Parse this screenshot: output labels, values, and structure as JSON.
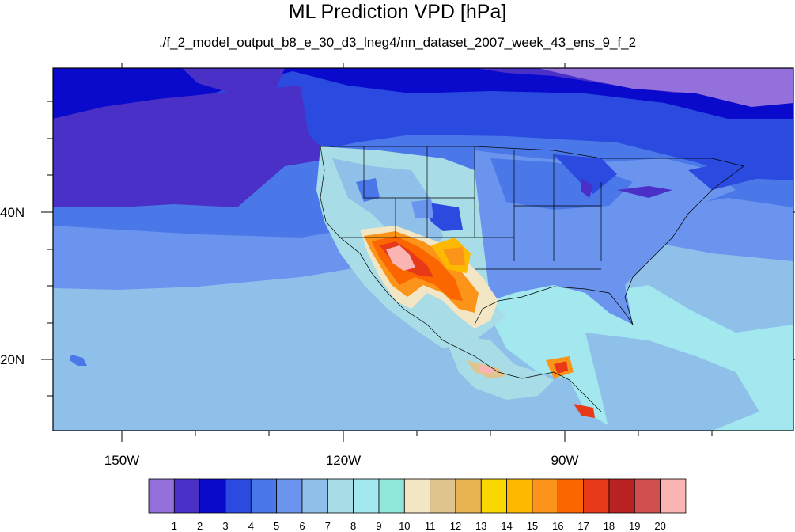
{
  "title": "ML Prediction VPD [hPa]",
  "subtitle": "./f_2_model_output_b8_e_30_d3_lneg4/nn_dataset_2007_week_43_ens_9_f_2",
  "axes": {
    "lat_labels": [
      "40N",
      "20N"
    ],
    "lon_labels": [
      "150W",
      "120W",
      "90W"
    ]
  },
  "colorbar": {
    "colors": [
      "#9370db",
      "#4b30c8",
      "#0a0acd",
      "#2a4ae0",
      "#4a78e8",
      "#6a94ee",
      "#8ec0ea",
      "#a8dce6",
      "#a2e8ee",
      "#90e6d8",
      "#f2e6c4",
      "#e0c490",
      "#e8b452",
      "#f8d800",
      "#fdb800",
      "#fb9418",
      "#fb6600",
      "#e83a18",
      "#b82222",
      "#d05050",
      "#fab4b4"
    ],
    "labels": [
      "1",
      "2",
      "3",
      "4",
      "5",
      "6",
      "7",
      "8",
      "9",
      "10",
      "11",
      "12",
      "13",
      "14",
      "15",
      "16",
      "17",
      "18",
      "19",
      "20"
    ]
  }
}
